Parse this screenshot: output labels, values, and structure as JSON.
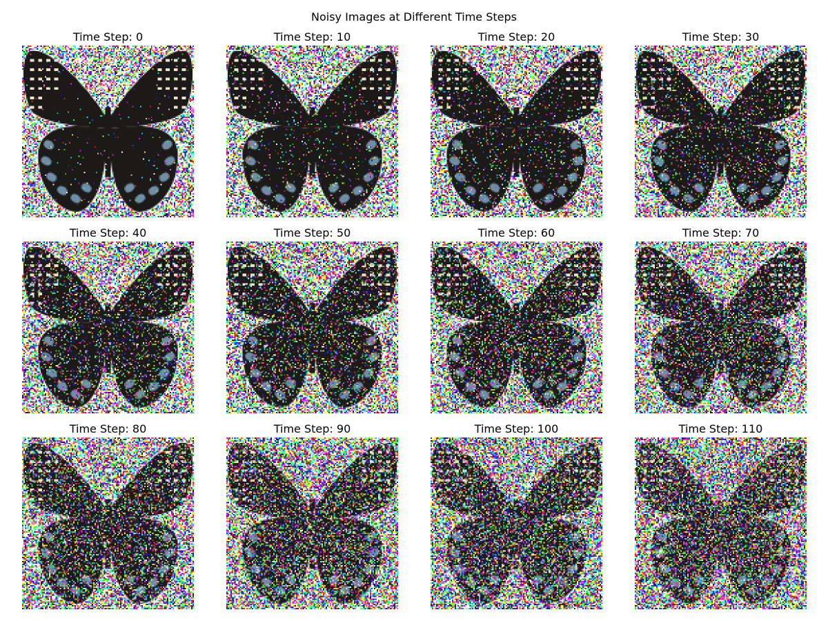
{
  "figure": {
    "title": "Noisy Images at Different Time Steps"
  },
  "panels": [
    {
      "title": "Time Step: 0",
      "time_step": 0
    },
    {
      "title": "Time Step: 10",
      "time_step": 10
    },
    {
      "title": "Time Step: 20",
      "time_step": 20
    },
    {
      "title": "Time Step: 30",
      "time_step": 30
    },
    {
      "title": "Time Step: 40",
      "time_step": 40
    },
    {
      "title": "Time Step: 50",
      "time_step": 50
    },
    {
      "title": "Time Step: 60",
      "time_step": 60
    },
    {
      "title": "Time Step: 70",
      "time_step": 70
    },
    {
      "title": "Time Step: 80",
      "time_step": 80
    },
    {
      "title": "Time Step: 90",
      "time_step": 90
    },
    {
      "title": "Time Step: 100",
      "time_step": 100
    },
    {
      "title": "Time Step: 110",
      "time_step": 110
    }
  ],
  "colors": {
    "background": "#ffffff",
    "wing_body": "#1c1a18",
    "wing_blue": "#6f8ea6",
    "wing_spots": "#e8e2cf"
  }
}
